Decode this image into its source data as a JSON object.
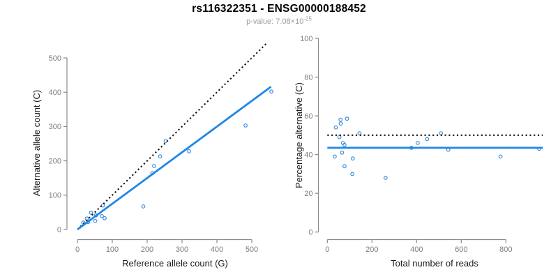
{
  "header": {
    "title": "rs116322351 - ENSG00000188452",
    "p_value_text": "p-value: 7.08×10",
    "p_value_exponent": "-25"
  },
  "colors": {
    "point_blue": "#3C8FDC",
    "line_blue": "#1F87E8",
    "dotted_black": "#141414",
    "axis_gray": "#8A8A8A",
    "tick_label_gray": "#7D7D7D",
    "axis_label_color": "#1A1A1A"
  },
  "chart_data": [
    {
      "id": "allele-count-scatter",
      "type": "scatter",
      "xlabel": "Reference allele count (G)",
      "ylabel": "Alternative allele count (C)",
      "xticks": [
        0,
        100,
        200,
        300,
        400,
        500
      ],
      "yticks": [
        0,
        100,
        200,
        300,
        400,
        500
      ],
      "xlim": [
        0,
        560
      ],
      "ylim": [
        0,
        560
      ],
      "points": [
        [
          17,
          20
        ],
        [
          27,
          32
        ],
        [
          31,
          22
        ],
        [
          39,
          49
        ],
        [
          51,
          25
        ],
        [
          53,
          41
        ],
        [
          70,
          39
        ],
        [
          78,
          33
        ],
        [
          73,
          70
        ],
        [
          189,
          67
        ],
        [
          215,
          164
        ],
        [
          220,
          185
        ],
        [
          237,
          213
        ],
        [
          253,
          258
        ],
        [
          320,
          228
        ],
        [
          482,
          303
        ],
        [
          556,
          402
        ]
      ],
      "lines": [
        {
          "name": "identity-line",
          "style": "dotted",
          "x1": 0,
          "y1": 0,
          "x2": 545,
          "y2": 545
        },
        {
          "name": "fit-line",
          "style": "solid",
          "x1": 0,
          "y1": 0,
          "x2": 555,
          "y2": 416
        }
      ]
    },
    {
      "id": "percentage-vs-reads-scatter",
      "type": "scatter",
      "xlabel": "Total number of reads",
      "ylabel": "Percentage alternative (C)",
      "xticks": [
        0,
        200,
        400,
        600,
        800
      ],
      "yticks": [
        0,
        20,
        40,
        60,
        80,
        100
      ],
      "xlim": [
        0,
        970
      ],
      "ylim": [
        0,
        100
      ],
      "points": [
        [
          33,
          39
        ],
        [
          38,
          54
        ],
        [
          54,
          49
        ],
        [
          59,
          58
        ],
        [
          60,
          56
        ],
        [
          66,
          41
        ],
        [
          70,
          46
        ],
        [
          77,
          45
        ],
        [
          77,
          34
        ],
        [
          88,
          58.5
        ],
        [
          112,
          30
        ],
        [
          114,
          38
        ],
        [
          144,
          51
        ],
        [
          261,
          28
        ],
        [
          377,
          43.5
        ],
        [
          405,
          46
        ],
        [
          447,
          48
        ],
        [
          509,
          51
        ],
        [
          542,
          42.5
        ],
        [
          776,
          39
        ],
        [
          949,
          43
        ]
      ],
      "lines": [
        {
          "name": "reference-line",
          "style": "dotted",
          "x1": 0,
          "y1": 50,
          "x2": 965,
          "y2": 50
        },
        {
          "name": "fit-line",
          "style": "solid",
          "x1": 0,
          "y1": 43.5,
          "x2": 965,
          "y2": 43.5
        }
      ]
    }
  ]
}
